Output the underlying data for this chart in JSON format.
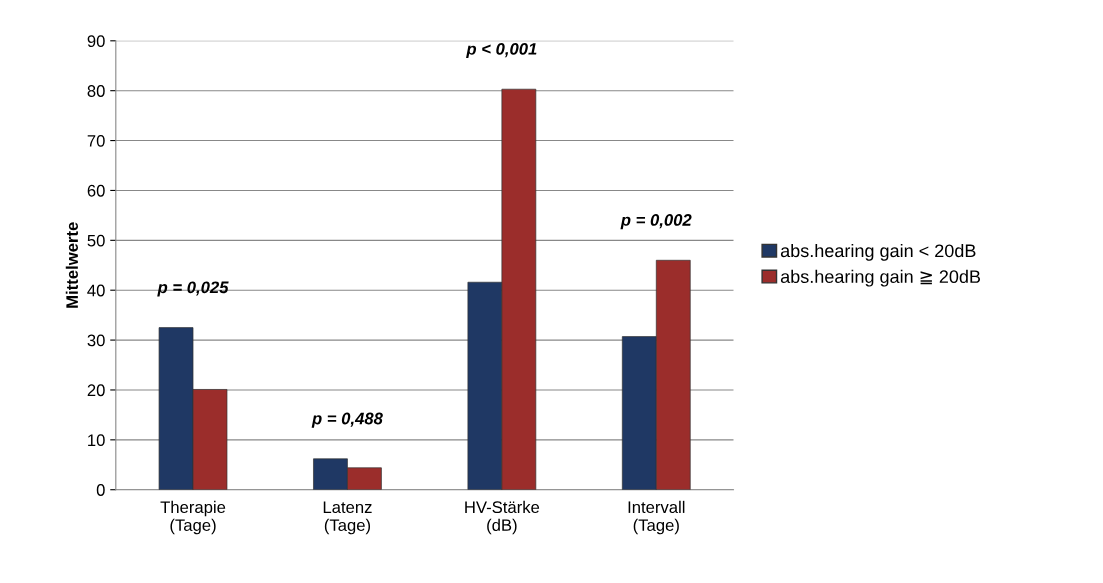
{
  "chart_data": {
    "type": "bar",
    "ylabel": "Mittelwerte",
    "categories": [
      "Therapie\n(Tage)",
      "Latenz\n(Tage)",
      "HV-Stärke\n(dB)",
      "Intervall\n(Tage)"
    ],
    "series": [
      {
        "name": "abs.hearing gain < 20dB",
        "color": "#1f3864",
        "values": [
          32.5,
          6.2,
          41.6,
          30.7
        ]
      },
      {
        "name": "abs.hearing gain ≧ 20dB",
        "color": "#9b2d2b",
        "values": [
          20.1,
          4.4,
          80.3,
          46.0
        ]
      }
    ],
    "ylim": [
      0,
      90
    ],
    "yticks": [
      0,
      10,
      20,
      30,
      40,
      50,
      60,
      70,
      80,
      90
    ],
    "grid": "y",
    "legend": "right",
    "annotations": [
      "p = 0,025",
      "p = 0,488",
      "p < 0,001",
      "p = 0,002"
    ]
  }
}
